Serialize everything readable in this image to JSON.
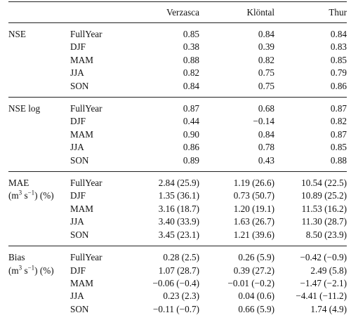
{
  "columns": {
    "metric": "",
    "season": "",
    "sites": [
      "Verzasca",
      "Klöntal",
      "Thur"
    ]
  },
  "groups": [
    {
      "metric": "NSE",
      "unit_prefix": "",
      "rows": [
        {
          "season": "FullYear",
          "values": [
            "0.85",
            "0.84",
            "0.84"
          ]
        },
        {
          "season": "DJF",
          "values": [
            "0.38",
            "0.39",
            "0.83"
          ]
        },
        {
          "season": "MAM",
          "values": [
            "0.88",
            "0.82",
            "0.85"
          ]
        },
        {
          "season": "JJA",
          "values": [
            "0.82",
            "0.75",
            "0.79"
          ]
        },
        {
          "season": "SON",
          "values": [
            "0.84",
            "0.75",
            "0.86"
          ]
        }
      ]
    },
    {
      "metric": "NSE log",
      "unit_prefix": "",
      "rows": [
        {
          "season": "FullYear",
          "values": [
            "0.87",
            "0.68",
            "0.87"
          ]
        },
        {
          "season": "DJF",
          "values": [
            "0.44",
            "−0.14",
            "0.82"
          ]
        },
        {
          "season": "MAM",
          "values": [
            "0.90",
            "0.84",
            "0.87"
          ]
        },
        {
          "season": "JJA",
          "values": [
            "0.86",
            "0.78",
            "0.85"
          ]
        },
        {
          "season": "SON",
          "values": [
            "0.89",
            "0.43",
            "0.88"
          ]
        }
      ]
    },
    {
      "metric": "MAE",
      "unit_prefix": "(m",
      "unit_sup1": "3",
      "unit_mid": " s",
      "unit_sup2": "−1",
      "unit_suffix": ") (%)",
      "rows": [
        {
          "season": "FullYear",
          "values": [
            "2.84 (25.9)",
            "1.19 (26.6)",
            "10.54 (22.5)"
          ]
        },
        {
          "season": "DJF",
          "values": [
            "1.35 (36.1)",
            "0.73 (50.7)",
            "10.89 (25.2)"
          ]
        },
        {
          "season": "MAM",
          "values": [
            "3.16 (18.7)",
            "1.20 (19.1)",
            "11.53 (16.2)"
          ]
        },
        {
          "season": "JJA",
          "values": [
            "3.40 (33.9)",
            "1.63 (26.7)",
            "11.30 (28.7)"
          ]
        },
        {
          "season": "SON",
          "values": [
            "3.45 (23.1)",
            "1.21 (39.6)",
            "8.50 (23.9)"
          ]
        }
      ]
    },
    {
      "metric": "Bias",
      "unit_prefix": "(m",
      "unit_sup1": "3",
      "unit_mid": " s",
      "unit_sup2": "−1",
      "unit_suffix": ") (%)",
      "rows": [
        {
          "season": "FullYear",
          "values": [
            "0.28 (2.5)",
            "0.26 (5.9)",
            "−0.42 (−0.9)"
          ]
        },
        {
          "season": "DJF",
          "values": [
            "1.07 (28.7)",
            "0.39 (27.2)",
            "2.49 (5.8)"
          ]
        },
        {
          "season": "MAM",
          "values": [
            "−0.06 (−0.4)",
            "−0.01 (−0.2)",
            "−1.47 (−2.1)"
          ]
        },
        {
          "season": "JJA",
          "values": [
            "0.23 (2.3)",
            "0.04 (0.6)",
            "−4.41 (−11.2)"
          ]
        },
        {
          "season": "SON",
          "values": [
            "−0.11 (−0.7)",
            "0.66 (5.9)",
            "1.74 (4.9)"
          ]
        }
      ]
    }
  ]
}
